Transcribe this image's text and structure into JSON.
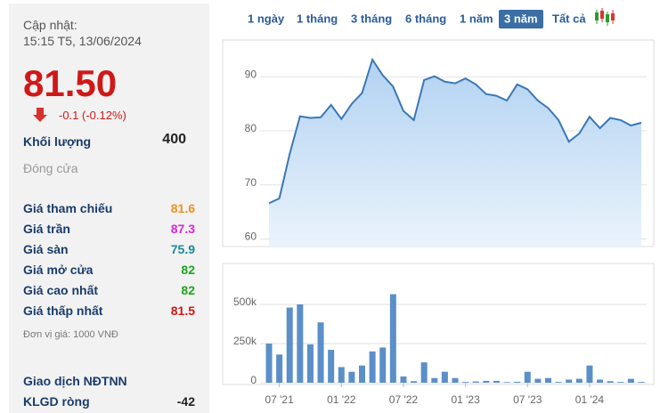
{
  "panel": {
    "updated_label": "Cập nhật:",
    "updated_time": "15:15 T5, 13/06/2024",
    "price": "81.50",
    "change": "-0.1 (-0.12%)",
    "volume_label": "Khối lượng",
    "volume": 400,
    "status": "Đóng cửa",
    "rows": [
      {
        "label": "Giá tham chiếu",
        "value": 81.6,
        "color": "#f0901e"
      },
      {
        "label": "Giá trần",
        "value": 87.3,
        "color": "#d62ad6"
      },
      {
        "label": "Giá sàn",
        "value": 75.9,
        "color": "#1a8a9a"
      },
      {
        "label": "Giá mở cửa",
        "value": 82,
        "color": "#1fa31f"
      },
      {
        "label": "Giá cao nhất",
        "value": 82,
        "color": "#1fa31f"
      },
      {
        "label": "Giá thấp nhất",
        "value": 81.5,
        "color": "#d01818"
      }
    ],
    "unit": "Đơn vị giá: 1000 VNĐ",
    "foreign_label": "Giao dịch NĐTNN",
    "net_label": "KLGD ròng",
    "net": -42
  },
  "tabs": {
    "items": [
      "1 ngày",
      "1 tháng",
      "3 tháng",
      "6 tháng",
      "1 năm",
      "3 năm",
      "Tất cả"
    ],
    "active": 5
  },
  "chart_data": [
    {
      "type": "line",
      "categories": [
        null,
        "07 '21",
        null,
        null,
        null,
        null,
        null,
        "01 '22",
        null,
        null,
        null,
        null,
        null,
        "07 '22",
        null,
        null,
        null,
        null,
        null,
        "01 '23",
        null,
        null,
        null,
        null,
        null,
        "07 '23",
        null,
        null,
        null,
        null,
        null,
        "01 '24",
        null,
        null,
        null,
        null,
        null
      ],
      "values": [
        66.6,
        67.5,
        75.7,
        82.7,
        82.4,
        82.5,
        84.8,
        82.2,
        85,
        87,
        93.2,
        90.3,
        88.2,
        83.7,
        82,
        89.4,
        90.1,
        89.1,
        88.8,
        89.7,
        88.6,
        86.8,
        86.5,
        85.6,
        88.6,
        87.7,
        85.6,
        84.2,
        82,
        78,
        79.5,
        82.6,
        80.5,
        82.4,
        82,
        81,
        81.5
      ],
      "color": "#3a78b5",
      "ylim": [
        58.6,
        96.8
      ],
      "yticks": [
        60,
        70,
        80,
        90
      ],
      "grid": true
    },
    {
      "type": "bar",
      "values": [
        250000,
        180000,
        480000,
        500000,
        245000,
        385000,
        210000,
        100000,
        70000,
        110000,
        200000,
        225000,
        565000,
        40000,
        10000,
        130000,
        30000,
        70000,
        30000,
        5000,
        8000,
        12000,
        12000,
        4000,
        6000,
        70000,
        25000,
        30000,
        5000,
        20000,
        25000,
        110000,
        20000,
        10000,
        5000,
        25000,
        5000
      ],
      "color": "#5b8fc9",
      "ylim": [
        0,
        750000
      ],
      "yticks": [
        0,
        {
          "value": 250000,
          "label": "250k"
        },
        {
          "value": 500000,
          "label": "500k"
        }
      ],
      "grid": true
    }
  ]
}
